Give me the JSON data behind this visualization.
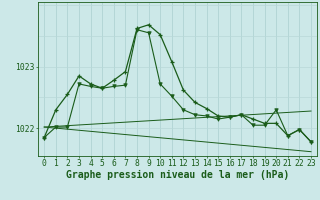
{
  "background_color": "#cce8e8",
  "grid_color_v": "#aacfcf",
  "grid_color_h": "#b8d8d8",
  "line_color": "#1a5c1a",
  "xlabel": "Graphe pression niveau de la mer (hPa)",
  "xlabel_fontsize": 7.0,
  "tick_fontsize": 5.8,
  "ylabel_ticks": [
    1022,
    1023
  ],
  "xlim": [
    -0.5,
    23.5
  ],
  "ylim": [
    1021.55,
    1024.05
  ],
  "series1_x": [
    0,
    1,
    2,
    3,
    4,
    5,
    6,
    7,
    8,
    9,
    10,
    11,
    12,
    13,
    14,
    15,
    16,
    17,
    18,
    19,
    20,
    21,
    22,
    23
  ],
  "series1_y": [
    1021.85,
    1022.3,
    1022.55,
    1022.85,
    1022.72,
    1022.65,
    1022.78,
    1022.92,
    1023.62,
    1023.68,
    1023.52,
    1023.08,
    1022.62,
    1022.42,
    1022.32,
    1022.2,
    1022.18,
    1022.22,
    1022.15,
    1022.08,
    1022.08,
    1021.88,
    1021.98,
    1021.78
  ],
  "series2_x": [
    0,
    1,
    2,
    3,
    4,
    5,
    6,
    7,
    8,
    9,
    10,
    11,
    12,
    13,
    14,
    15,
    16,
    17,
    18,
    19,
    20,
    21,
    22,
    23
  ],
  "series2_y": [
    1021.85,
    1022.02,
    1022.02,
    1022.72,
    1022.68,
    1022.65,
    1022.68,
    1022.7,
    1023.6,
    1023.55,
    1022.72,
    1022.52,
    1022.3,
    1022.22,
    1022.2,
    1022.15,
    1022.18,
    1022.22,
    1022.05,
    1022.05,
    1022.3,
    1021.88,
    1021.98,
    1021.78
  ],
  "series3_x": [
    0,
    23
  ],
  "series3_y": [
    1022.02,
    1021.62
  ],
  "series4_x": [
    0,
    23
  ],
  "series4_y": [
    1022.02,
    1022.28
  ]
}
